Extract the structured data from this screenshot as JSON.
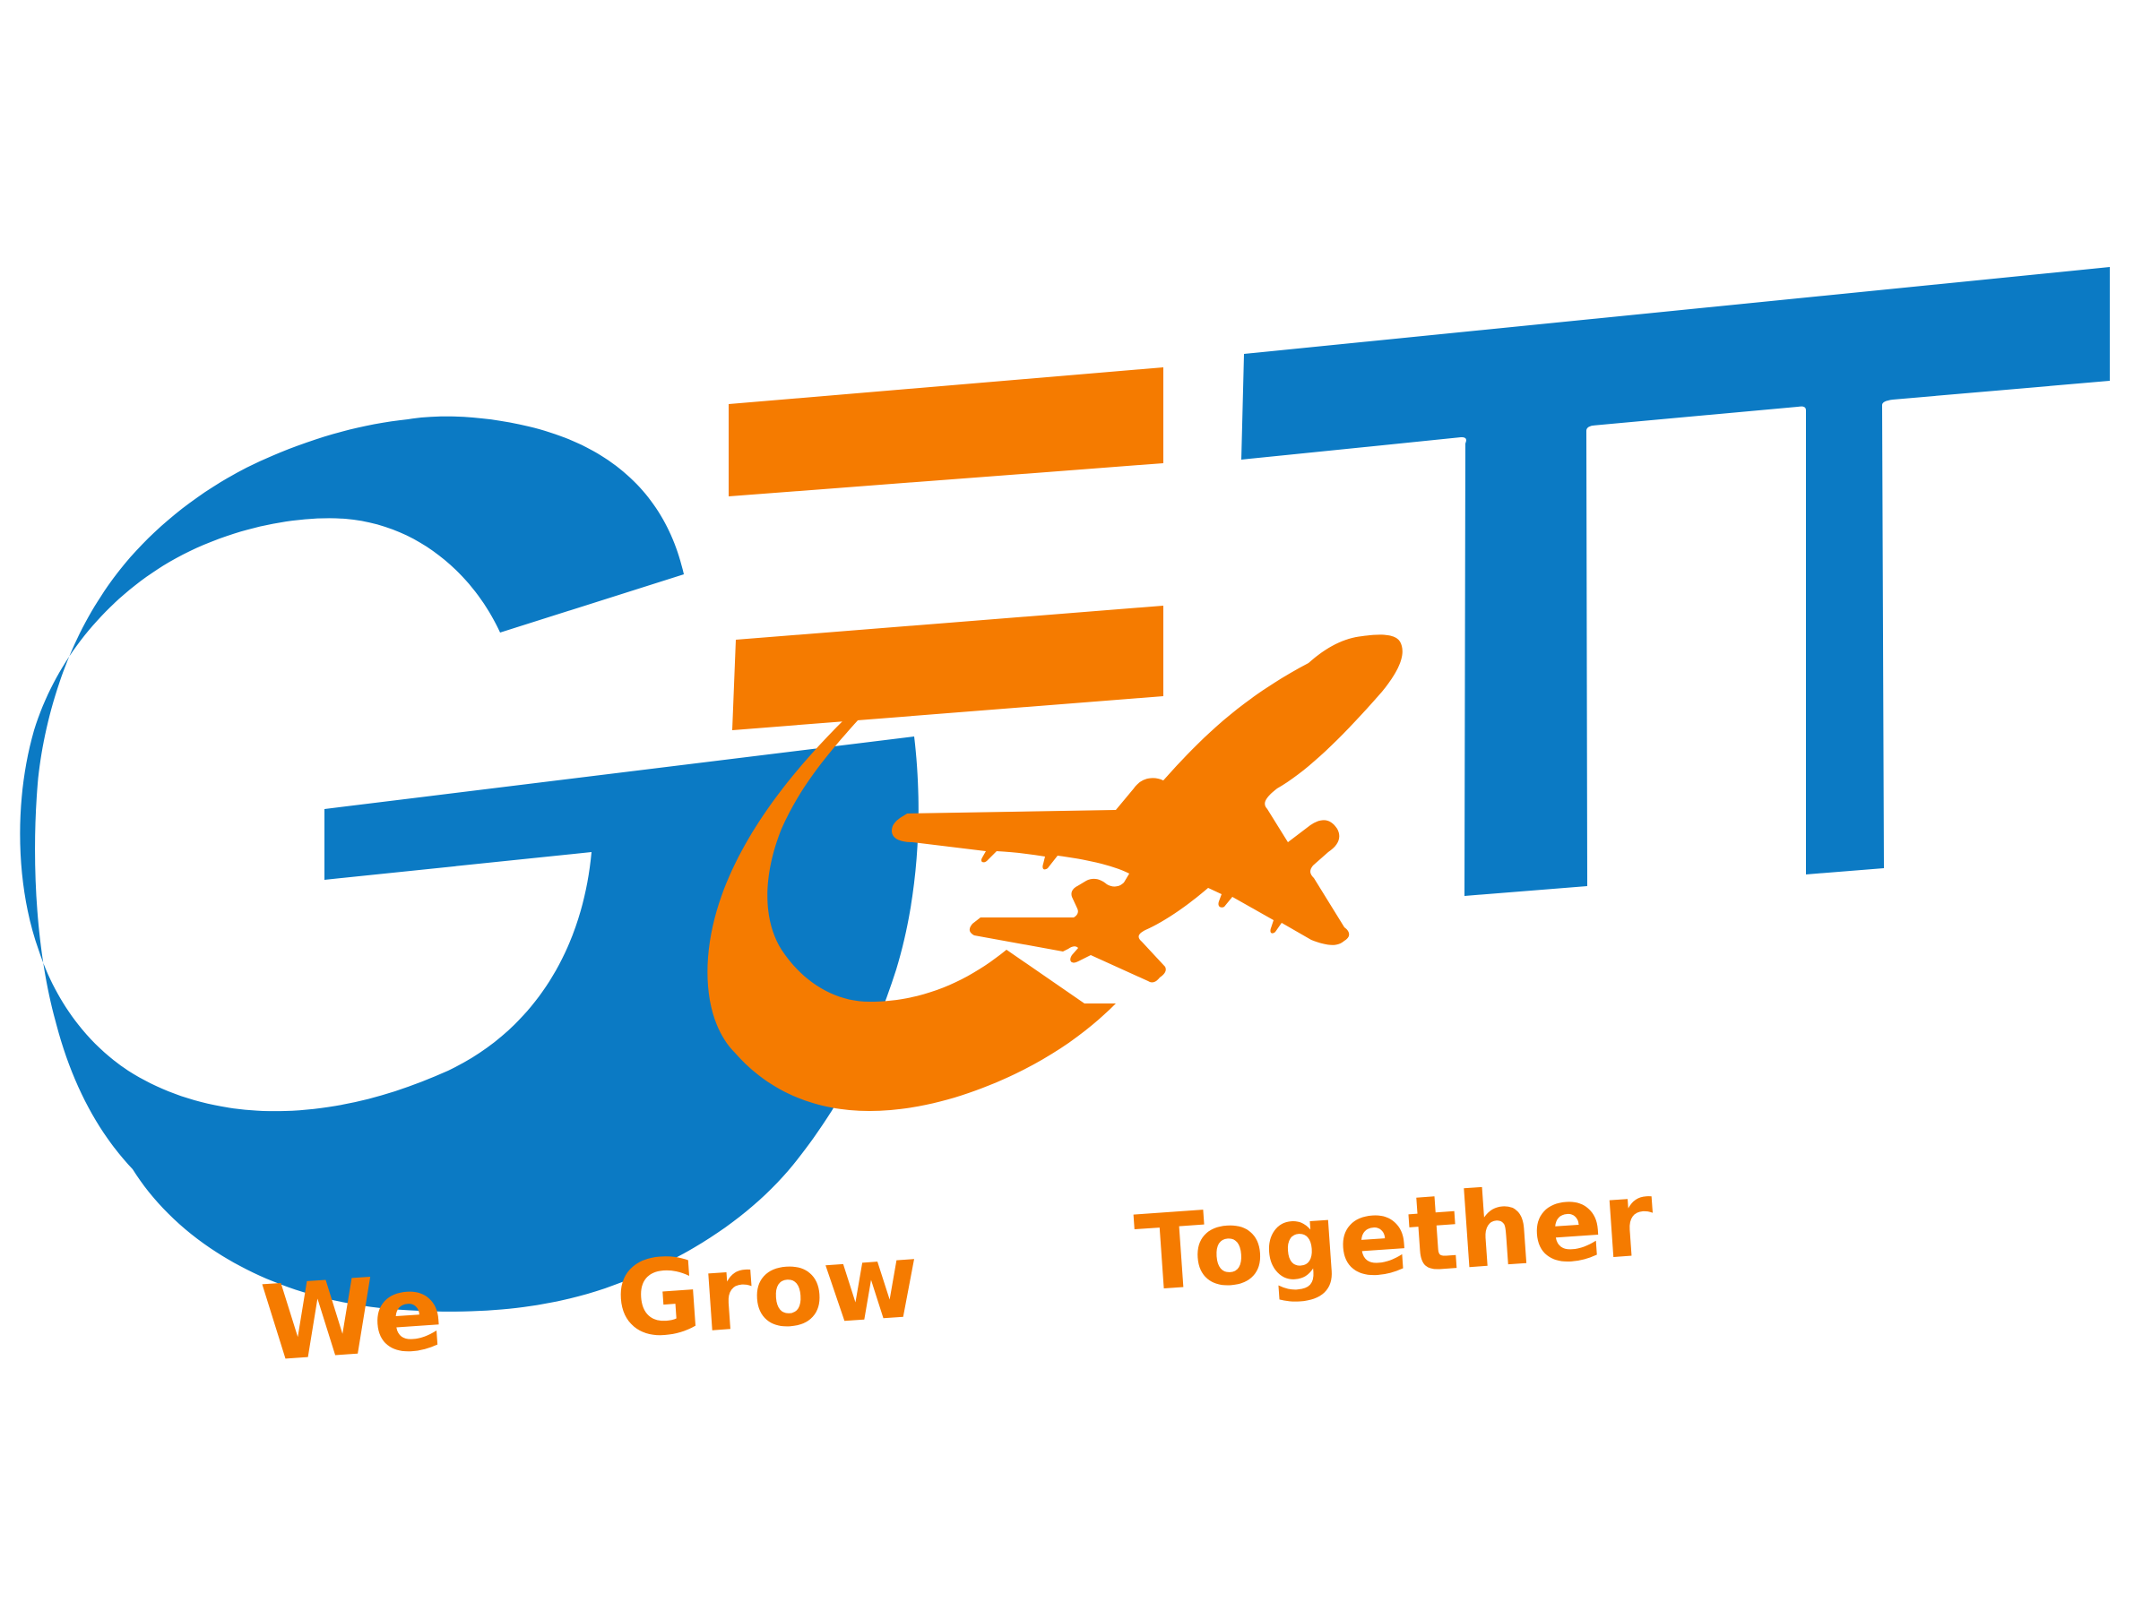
{
  "logo": {
    "letters": "GETT",
    "colors": {
      "blue": "#0B7AC4",
      "orange": "#F57B00",
      "background": "#FFFFFF"
    },
    "icon": "airplane-icon"
  },
  "tagline": {
    "words": [
      "We",
      "Grow",
      "Together"
    ]
  }
}
